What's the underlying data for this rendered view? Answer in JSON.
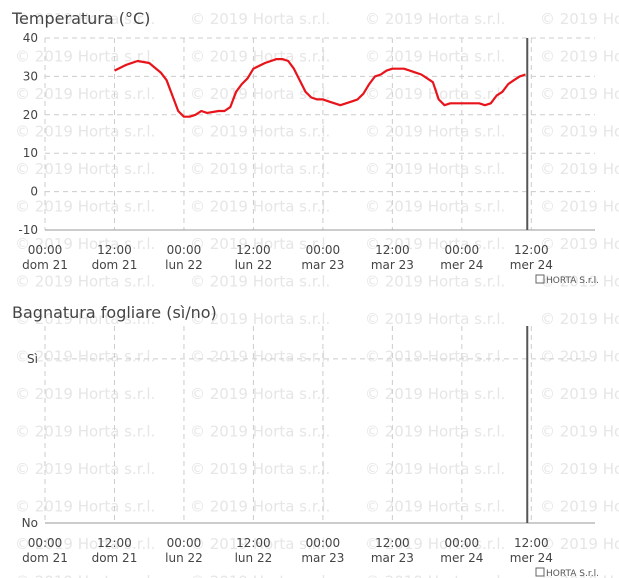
{
  "watermark": "© 2019 Horta s.r.l.",
  "chart_data": [
    {
      "type": "line",
      "title": "Temperatura (°C)",
      "credit": "HORTA S.r.l.",
      "x": [
        12,
        14,
        16,
        18,
        20,
        21,
        22,
        23,
        24,
        25,
        26,
        27,
        28,
        30,
        31,
        32,
        33,
        34,
        35,
        36,
        38,
        40,
        41,
        42,
        43,
        44,
        45,
        46,
        47,
        48,
        49,
        50,
        51,
        52,
        53,
        54,
        55,
        56,
        57,
        58,
        59,
        60,
        61,
        62,
        63,
        64,
        65,
        66,
        67,
        68,
        69,
        70,
        71,
        72,
        73,
        74,
        75,
        76,
        77,
        78,
        79,
        80,
        81,
        82,
        83
      ],
      "series": [
        {
          "name": "Temperatura",
          "color": "#e8141b",
          "values": [
            31.5,
            33,
            34,
            33.5,
            31,
            29,
            25,
            21,
            19.5,
            19.5,
            20,
            21,
            20.5,
            21,
            21,
            22,
            26,
            28,
            29.5,
            32,
            33.5,
            34.5,
            34.5,
            34,
            32,
            29,
            26,
            24.5,
            24,
            24,
            23.5,
            23,
            22.5,
            23,
            23.5,
            24,
            25.5,
            28,
            30,
            30.5,
            31.5,
            32,
            32,
            32,
            31.5,
            31,
            30.5,
            29.5,
            28.5,
            24,
            22.5,
            23,
            23,
            23,
            23,
            23,
            23,
            22.5,
            23,
            25,
            26,
            28,
            29,
            30,
            30.5
          ]
        }
      ],
      "xlim": [
        0,
        95
      ],
      "ylim": [
        -10,
        40
      ],
      "yticks": [
        -10,
        0,
        10,
        20,
        30,
        40
      ],
      "xticks": [
        {
          "value": 0,
          "label": "00:00\ndom 21"
        },
        {
          "value": 12,
          "label": "12:00\ndom 21"
        },
        {
          "value": 24,
          "label": "00:00\nlun 22"
        },
        {
          "value": 36,
          "label": "12:00\nlun 22"
        },
        {
          "value": 48,
          "label": "00:00\nmar 23"
        },
        {
          "value": 60,
          "label": "12:00\nmar 23"
        },
        {
          "value": 72,
          "label": "00:00\nmer 24"
        },
        {
          "value": 84,
          "label": "12:00\nmer 24"
        }
      ],
      "vline": 83.3,
      "grid": true
    },
    {
      "type": "line",
      "title": "Bagnatura fogliare (sì/no)",
      "credit": "HORTA S.r.l.",
      "xlim": [
        0,
        95
      ],
      "ylim": [
        0,
        1.2
      ],
      "yticks": [
        {
          "value": 0,
          "label": "No"
        },
        {
          "value": 1,
          "label": "Sì"
        }
      ],
      "xticks": [
        {
          "value": 0,
          "label": "00:00\ndom 21"
        },
        {
          "value": 12,
          "label": "12:00\ndom 21"
        },
        {
          "value": 24,
          "label": "00:00\nlun 22"
        },
        {
          "value": 36,
          "label": "12:00\nlun 22"
        },
        {
          "value": 48,
          "label": "00:00\nmar 23"
        },
        {
          "value": 60,
          "label": "12:00\nmar 23"
        },
        {
          "value": 72,
          "label": "00:00\nmer 24"
        },
        {
          "value": 84,
          "label": "12:00\nmer 24"
        }
      ],
      "vline": 83.3,
      "grid": true
    }
  ]
}
